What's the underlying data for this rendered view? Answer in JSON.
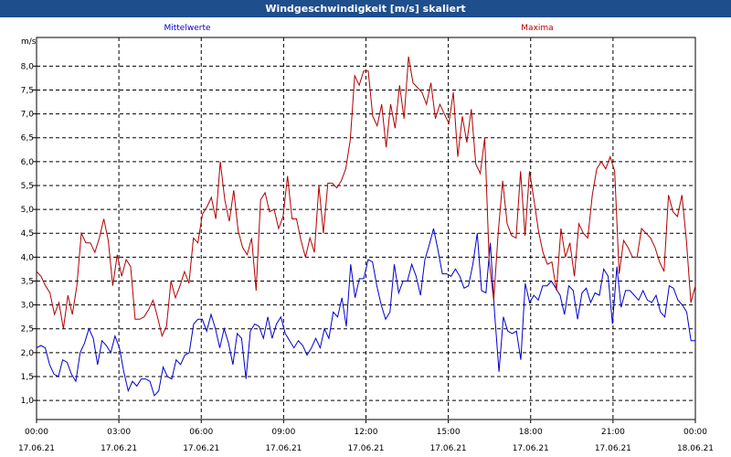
{
  "window": {
    "title": "Windgeschwindigkeit [m/s] skaliert"
  },
  "chart_data": {
    "type": "line",
    "title": "Windgeschwindigkeit [m/s] skaliert",
    "ylabel": "m/s",
    "xlabel": "",
    "ylim": [
      0.6,
      8.6
    ],
    "xlim": [
      0,
      24
    ],
    "grid": true,
    "legend_placement": "top",
    "yticks": [
      "1,0",
      "1,5",
      "2,0",
      "2,5",
      "3,0",
      "3,5",
      "4,0",
      "4,5",
      "5,0",
      "5,5",
      "6,0",
      "6,5",
      "7,0",
      "7,5",
      "8,0"
    ],
    "xticks": [
      {
        "time": "00:00",
        "date": "17.06.21"
      },
      {
        "time": "03:00",
        "date": "17.06.21"
      },
      {
        "time": "06:00",
        "date": "17.06.21"
      },
      {
        "time": "09:00",
        "date": "17.06.21"
      },
      {
        "time": "12:00",
        "date": "17.06.21"
      },
      {
        "time": "15:00",
        "date": "17.06.21"
      },
      {
        "time": "18:00",
        "date": "17.06.21"
      },
      {
        "time": "21:00",
        "date": "17.06.21"
      },
      {
        "time": "00:00",
        "date": "18.06.21"
      }
    ],
    "series": [
      {
        "name": "Mittelwerte",
        "color": "#0000cc",
        "values": [
          2.1,
          2.15,
          2.1,
          1.75,
          1.55,
          1.5,
          1.85,
          1.8,
          1.55,
          1.4,
          2.0,
          2.2,
          2.5,
          2.3,
          1.75,
          2.25,
          2.15,
          2.0,
          2.35,
          2.1,
          1.6,
          1.2,
          1.4,
          1.3,
          1.45,
          1.45,
          1.4,
          1.1,
          1.2,
          1.7,
          1.5,
          1.45,
          1.85,
          1.75,
          1.95,
          2.0,
          2.6,
          2.7,
          2.7,
          2.45,
          2.8,
          2.5,
          2.1,
          2.5,
          2.2,
          1.75,
          2.4,
          2.3,
          1.45,
          2.45,
          2.6,
          2.55,
          2.3,
          2.75,
          2.3,
          2.6,
          2.75,
          2.4,
          2.25,
          2.1,
          2.25,
          2.15,
          1.95,
          2.1,
          2.3,
          2.1,
          2.5,
          2.3,
          2.85,
          2.75,
          3.15,
          2.55,
          3.85,
          3.15,
          3.55,
          3.55,
          3.95,
          3.9,
          3.4,
          3.0,
          2.7,
          2.85,
          3.85,
          3.25,
          3.5,
          3.5,
          3.85,
          3.6,
          3.2,
          3.95,
          4.25,
          4.6,
          4.15,
          3.65,
          3.65,
          3.6,
          3.75,
          3.6,
          3.35,
          3.4,
          3.85,
          4.5,
          3.3,
          3.25,
          4.3,
          2.8,
          1.6,
          2.75,
          2.45,
          2.4,
          2.45,
          1.85,
          3.45,
          3.05,
          3.2,
          3.1,
          3.4,
          3.4,
          3.5,
          3.35,
          3.2,
          2.8,
          3.4,
          3.3,
          2.7,
          3.25,
          3.35,
          3.05,
          3.25,
          3.2,
          3.75,
          3.6,
          2.6,
          3.8,
          2.95,
          3.3,
          3.3,
          3.2,
          3.1,
          3.3,
          3.1,
          3.05,
          3.2,
          2.85,
          2.75,
          3.4,
          3.35,
          3.1,
          3.0,
          2.85,
          2.25,
          2.25
        ]
      },
      {
        "name": "Maxima",
        "color": "#b00000",
        "values": [
          3.7,
          3.6,
          3.4,
          3.25,
          2.8,
          3.05,
          2.5,
          3.2,
          2.8,
          3.4,
          4.5,
          4.3,
          4.3,
          4.1,
          4.4,
          4.8,
          4.35,
          3.4,
          4.05,
          3.6,
          3.95,
          3.8,
          2.7,
          2.7,
          2.75,
          2.9,
          3.1,
          2.75,
          2.35,
          2.55,
          3.5,
          3.15,
          3.4,
          3.7,
          3.45,
          4.4,
          4.3,
          4.9,
          5.05,
          5.25,
          4.8,
          6.0,
          5.2,
          4.75,
          5.4,
          4.55,
          4.2,
          4.05,
          4.4,
          3.3,
          5.2,
          5.35,
          4.95,
          5.0,
          4.6,
          4.85,
          5.7,
          4.8,
          4.8,
          4.35,
          4.0,
          4.4,
          4.1,
          5.5,
          4.5,
          5.55,
          5.55,
          5.45,
          5.6,
          5.85,
          6.45,
          7.8,
          7.6,
          7.9,
          7.9,
          6.95,
          6.75,
          7.2,
          6.3,
          7.2,
          6.7,
          7.6,
          6.9,
          8.2,
          7.65,
          7.55,
          7.45,
          7.2,
          7.65,
          6.9,
          7.2,
          7.0,
          6.8,
          7.45,
          6.1,
          6.95,
          6.4,
          7.1,
          5.95,
          5.75,
          6.5,
          3.9,
          3.1,
          4.5,
          5.6,
          4.7,
          4.45,
          4.4,
          5.8,
          4.45,
          5.8,
          5.2,
          4.55,
          4.1,
          3.85,
          3.9,
          3.3,
          4.6,
          4.0,
          4.3,
          3.6,
          4.7,
          4.5,
          4.4,
          5.3,
          5.85,
          6.0,
          5.85,
          6.1,
          5.8,
          3.65,
          4.35,
          4.2,
          4.0,
          4.0,
          4.6,
          4.5,
          4.4,
          4.2,
          3.9,
          3.7,
          5.3,
          4.95,
          4.85,
          5.3,
          4.35,
          3.05,
          3.4
        ]
      }
    ]
  }
}
